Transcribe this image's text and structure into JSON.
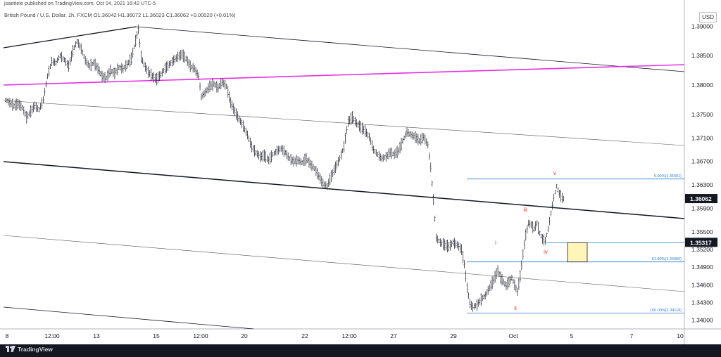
{
  "header": {
    "published": "jsaettele published on TradingView.com, Oct 04, 2021 16:42 UTC-5",
    "symbol_line": "British Pound / U.S. Dollar, 1h, FXCM  O1.36042  H1.36072  L1.36023  C1.36062  +0.00020 (+0.01%)",
    "currency_button": "USD"
  },
  "footer": {
    "brand": "TradingView"
  },
  "chart_data": {
    "type": "candlestick",
    "instrument": "British Pound / U.S. Dollar",
    "timeframe": "1h",
    "source": "FXCM",
    "ohlc_last": {
      "open": 1.36042,
      "high": 1.36072,
      "low": 1.36023,
      "close": 1.36062,
      "change": 0.0002,
      "change_pct": 0.01
    },
    "ylim": [
      1.3385,
      1.3928
    ],
    "y_ticks": [
      "1.39000",
      "1.38500",
      "1.38000",
      "1.37500",
      "1.37100",
      "1.36700",
      "1.36300",
      "1.35900",
      "1.35500",
      "1.35200",
      "1.34900",
      "1.34600",
      "1.34300",
      "1.34000"
    ],
    "x_ticks": [
      "8",
      "12:00",
      "13",
      "15",
      "12:00",
      "20",
      "22",
      "12:00",
      "27",
      "29",
      "Oct",
      "5",
      "7",
      "10"
    ],
    "price_labels": [
      {
        "value": 1.36062,
        "text": "1.36062",
        "bg": "#131722"
      },
      {
        "value": 1.35317,
        "text": "1.35317",
        "bg": "#131722"
      }
    ],
    "fib_levels": [
      {
        "ratio": "0.00%",
        "price": 1.36401,
        "label": "0.00%(1.36401)"
      },
      {
        "ratio": "61.80%",
        "price": 1.3499,
        "label": "61.80%(1.34990)"
      },
      {
        "ratio": "100.00%",
        "price": 1.34118,
        "label": "100.00%(1.34118)"
      }
    ],
    "wave_labels": [
      "i",
      "ii",
      "iii",
      "iv",
      "v"
    ],
    "target_zone": {
      "top": 1.35317,
      "bottom": 1.3499,
      "fill": "#fff5b8"
    },
    "colors": {
      "magenta_line": "#e62ee6",
      "fib": "#2e7bd6",
      "wave_label": "#e53935",
      "channel": "#131722"
    },
    "price_path": [
      [
        0,
        1.3775
      ],
      [
        6,
        1.377
      ],
      [
        12,
        1.3765
      ],
      [
        18,
        1.3768
      ],
      [
        24,
        1.3762
      ],
      [
        30,
        1.3745
      ],
      [
        36,
        1.3755
      ],
      [
        42,
        1.3765
      ],
      [
        48,
        1.3758
      ],
      [
        54,
        1.3775
      ],
      [
        60,
        1.3815
      ],
      [
        66,
        1.384
      ],
      [
        72,
        1.3838
      ],
      [
        78,
        1.385
      ],
      [
        84,
        1.3843
      ],
      [
        90,
        1.3832
      ],
      [
        96,
        1.3858
      ],
      [
        102,
        1.3875
      ],
      [
        108,
        1.3862
      ],
      [
        114,
        1.3842
      ],
      [
        120,
        1.3832
      ],
      [
        126,
        1.3838
      ],
      [
        132,
        1.3828
      ],
      [
        138,
        1.3815
      ],
      [
        144,
        1.3812
      ],
      [
        150,
        1.3825
      ],
      [
        156,
        1.382
      ],
      [
        162,
        1.383
      ],
      [
        168,
        1.3828
      ],
      [
        174,
        1.3835
      ],
      [
        180,
        1.3845
      ],
      [
        186,
        1.3875
      ],
      [
        190,
        1.3895
      ],
      [
        194,
        1.3848
      ],
      [
        198,
        1.3835
      ],
      [
        204,
        1.3822
      ],
      [
        210,
        1.3815
      ],
      [
        216,
        1.381
      ],
      [
        222,
        1.3818
      ],
      [
        228,
        1.3828
      ],
      [
        234,
        1.3835
      ],
      [
        240,
        1.3842
      ],
      [
        246,
        1.3848
      ],
      [
        252,
        1.3852
      ],
      [
        258,
        1.3845
      ],
      [
        264,
        1.3832
      ],
      [
        270,
        1.3828
      ],
      [
        276,
        1.3815
      ],
      [
        280,
        1.378
      ],
      [
        286,
        1.3788
      ],
      [
        292,
        1.3798
      ],
      [
        298,
        1.3802
      ],
      [
        304,
        1.3795
      ],
      [
        310,
        1.3805
      ],
      [
        316,
        1.3798
      ],
      [
        322,
        1.377
      ],
      [
        328,
        1.3755
      ],
      [
        334,
        1.3742
      ],
      [
        340,
        1.373
      ],
      [
        346,
        1.3715
      ],
      [
        352,
        1.3695
      ],
      [
        358,
        1.3685
      ],
      [
        364,
        1.3678
      ],
      [
        370,
        1.368
      ],
      [
        376,
        1.3672
      ],
      [
        382,
        1.3682
      ],
      [
        388,
        1.3688
      ],
      [
        394,
        1.3692
      ],
      [
        400,
        1.3685
      ],
      [
        406,
        1.3675
      ],
      [
        412,
        1.367
      ],
      [
        418,
        1.3672
      ],
      [
        424,
        1.3668
      ],
      [
        430,
        1.3675
      ],
      [
        436,
        1.3665
      ],
      [
        442,
        1.3658
      ],
      [
        448,
        1.3645
      ],
      [
        454,
        1.3632
      ],
      [
        460,
        1.3628
      ],
      [
        466,
        1.3645
      ],
      [
        472,
        1.366
      ],
      [
        478,
        1.3675
      ],
      [
        484,
        1.3695
      ],
      [
        490,
        1.3738
      ],
      [
        496,
        1.3745
      ],
      [
        502,
        1.3735
      ],
      [
        508,
        1.3728
      ],
      [
        514,
        1.3722
      ],
      [
        520,
        1.3712
      ],
      [
        526,
        1.369
      ],
      [
        532,
        1.3682
      ],
      [
        538,
        1.3675
      ],
      [
        544,
        1.3678
      ],
      [
        550,
        1.3685
      ],
      [
        556,
        1.3682
      ],
      [
        562,
        1.3688
      ],
      [
        568,
        1.3705
      ],
      [
        574,
        1.372
      ],
      [
        580,
        1.3715
      ],
      [
        586,
        1.3712
      ],
      [
        592,
        1.3705
      ],
      [
        598,
        1.3712
      ],
      [
        604,
        1.3698
      ],
      [
        608,
        1.366
      ],
      [
        612,
        1.3605
      ],
      [
        616,
        1.354
      ],
      [
        622,
        1.3532
      ],
      [
        628,
        1.3528
      ],
      [
        634,
        1.3525
      ],
      [
        640,
        1.3532
      ],
      [
        646,
        1.3528
      ],
      [
        652,
        1.352
      ],
      [
        656,
        1.3495
      ],
      [
        660,
        1.3455
      ],
      [
        664,
        1.3428
      ],
      [
        668,
        1.3422
      ],
      [
        674,
        1.3426
      ],
      [
        680,
        1.3435
      ],
      [
        686,
        1.3442
      ],
      [
        692,
        1.3455
      ],
      [
        698,
        1.3468
      ],
      [
        704,
        1.3485
      ],
      [
        708,
        1.3472
      ],
      [
        712,
        1.3465
      ],
      [
        716,
        1.3458
      ],
      [
        720,
        1.3465
      ],
      [
        724,
        1.3472
      ],
      [
        728,
        1.346
      ],
      [
        732,
        1.3448
      ],
      [
        736,
        1.3475
      ],
      [
        740,
        1.3512
      ],
      [
        744,
        1.3545
      ],
      [
        748,
        1.3565
      ],
      [
        752,
        1.3562
      ],
      [
        756,
        1.3555
      ],
      [
        760,
        1.3565
      ],
      [
        764,
        1.3548
      ],
      [
        768,
        1.3538
      ],
      [
        772,
        1.3535
      ],
      [
        776,
        1.3555
      ],
      [
        780,
        1.3582
      ],
      [
        784,
        1.3608
      ],
      [
        788,
        1.3628
      ],
      [
        792,
        1.3615
      ],
      [
        796,
        1.3608
      ],
      [
        800,
        1.3605
      ]
    ]
  }
}
